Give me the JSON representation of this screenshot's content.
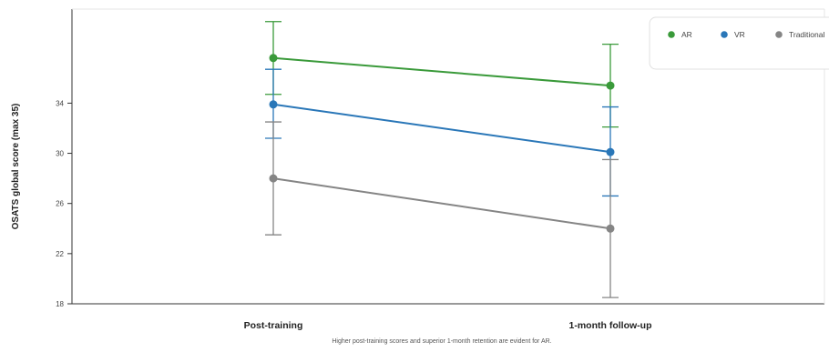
{
  "chart_data": {
    "type": "line",
    "ylabel": "OSATS global score (max 35)",
    "xlabel": "",
    "categories": [
      "Post-training",
      "1-month follow-up"
    ],
    "ylim": [
      18,
      41.5
    ],
    "yticks": [
      18,
      22,
      26,
      30,
      34
    ],
    "grid": false,
    "legend_position": "top-right",
    "caption": "Higher post-training scores and superior 1-month retention are evident for AR.",
    "series": [
      {
        "name": "AR",
        "color": "#3a9a3a",
        "values": [
          37.6,
          35.4
        ],
        "err_low": [
          34.7,
          32.1
        ],
        "err_high": [
          40.5,
          38.7
        ]
      },
      {
        "name": "VR",
        "color": "#2a77b8",
        "values": [
          33.9,
          30.1
        ],
        "err_low": [
          31.2,
          26.6
        ],
        "err_high": [
          36.7,
          33.7
        ]
      },
      {
        "name": "Traditional",
        "color": "#858585",
        "values": [
          28.0,
          24.0
        ],
        "err_low": [
          23.5,
          18.5
        ],
        "err_high": [
          32.5,
          29.5
        ]
      }
    ]
  }
}
